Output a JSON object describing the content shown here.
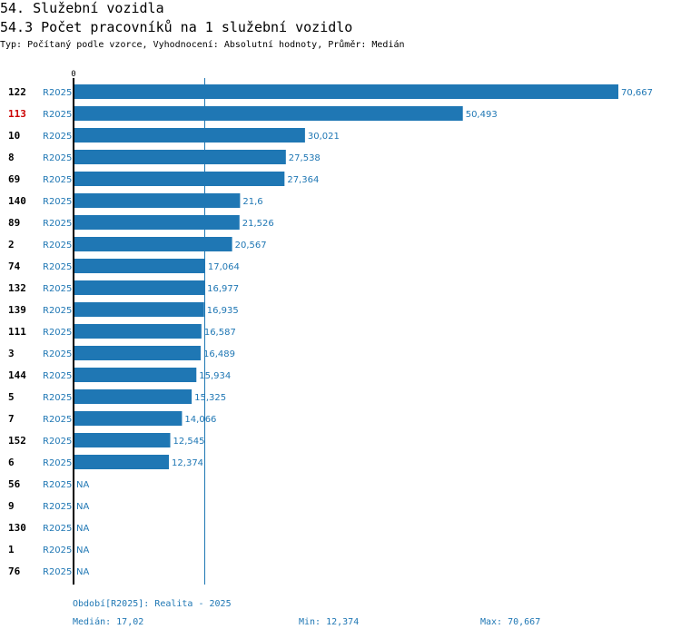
{
  "header": {
    "title": "54. Služební vozidla",
    "subtitle": "54.3 Počet pracovníků na 1 služební vozidlo",
    "type_line": "Typ: Počítaný podle vzorce, Vyhodnocení: Absolutní hodnoty, Průměr: Medián"
  },
  "chart_data": {
    "type": "bar",
    "orientation": "horizontal",
    "axis_zero_label": "0",
    "xlim": [
      0,
      70.667
    ],
    "median": 17.02,
    "highlight_color": "#cc0000",
    "bar_color": "#1f77b4",
    "rows": [
      {
        "id": "122",
        "period": "R2025",
        "value": 70.667,
        "label": "70,667"
      },
      {
        "id": "113",
        "period": "R2025",
        "value": 50.493,
        "label": "50,493",
        "highlight": true
      },
      {
        "id": "10",
        "period": "R2025",
        "value": 30.021,
        "label": "30,021"
      },
      {
        "id": "8",
        "period": "R2025",
        "value": 27.538,
        "label": "27,538"
      },
      {
        "id": "69",
        "period": "R2025",
        "value": 27.364,
        "label": "27,364"
      },
      {
        "id": "140",
        "period": "R2025",
        "value": 21.6,
        "label": "21,6"
      },
      {
        "id": "89",
        "period": "R2025",
        "value": 21.526,
        "label": "21,526"
      },
      {
        "id": "2",
        "period": "R2025",
        "value": 20.567,
        "label": "20,567"
      },
      {
        "id": "74",
        "period": "R2025",
        "value": 17.064,
        "label": "17,064"
      },
      {
        "id": "132",
        "period": "R2025",
        "value": 16.977,
        "label": "16,977"
      },
      {
        "id": "139",
        "period": "R2025",
        "value": 16.935,
        "label": "16,935"
      },
      {
        "id": "111",
        "period": "R2025",
        "value": 16.587,
        "label": "16,587"
      },
      {
        "id": "3",
        "period": "R2025",
        "value": 16.489,
        "label": "16,489"
      },
      {
        "id": "144",
        "period": "R2025",
        "value": 15.934,
        "label": "15,934"
      },
      {
        "id": "5",
        "period": "R2025",
        "value": 15.325,
        "label": "15,325"
      },
      {
        "id": "7",
        "period": "R2025",
        "value": 14.066,
        "label": "14,066"
      },
      {
        "id": "152",
        "period": "R2025",
        "value": 12.545,
        "label": "12,545"
      },
      {
        "id": "6",
        "period": "R2025",
        "value": 12.374,
        "label": "12,374"
      },
      {
        "id": "56",
        "period": "R2025",
        "value": null,
        "label": "NA"
      },
      {
        "id": "9",
        "period": "R2025",
        "value": null,
        "label": "NA"
      },
      {
        "id": "130",
        "period": "R2025",
        "value": null,
        "label": "NA"
      },
      {
        "id": "1",
        "period": "R2025",
        "value": null,
        "label": "NA"
      },
      {
        "id": "76",
        "period": "R2025",
        "value": null,
        "label": "NA"
      }
    ]
  },
  "footer": {
    "period_legend": "Období[R2025]: Realita - 2025",
    "median_text": "Medián: 17,02",
    "min_text": "Min: 12,374",
    "max_text": "Max: 70,667"
  }
}
